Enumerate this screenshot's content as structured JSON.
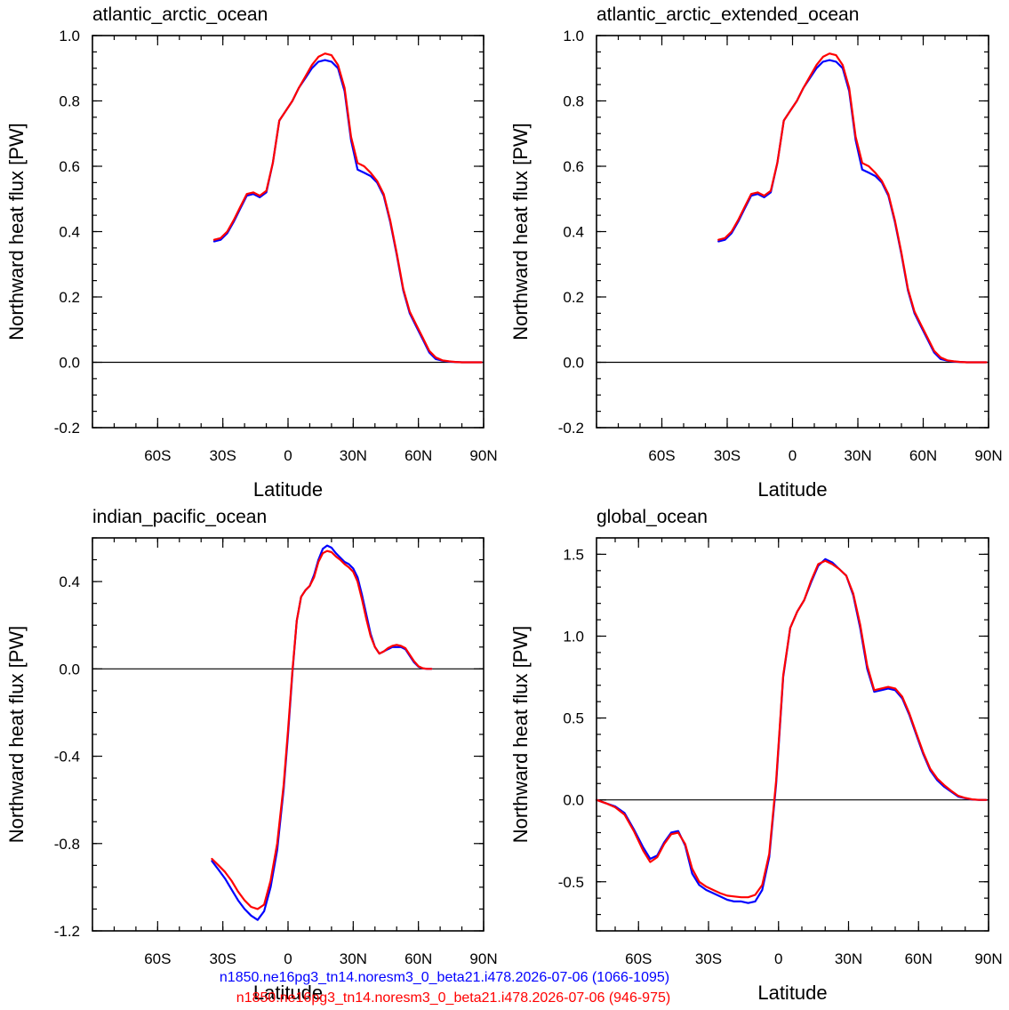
{
  "legend": [
    {
      "name": "n1850.ne16pg3_tn14.noresm3_0_beta21.i478.2026-07-06 (1066-1095)",
      "color": "#0000ff"
    },
    {
      "name": "n1850.ne16pg3_tn14.noresm3_0_beta21.i478.2026-07-06 (946-975)",
      "color": "#ff0000"
    }
  ],
  "chart_data": [
    {
      "type": "line",
      "title": "atlantic_arctic_ocean",
      "xlabel": "Latitude",
      "ylabel": "Northward heat flux [PW]",
      "xlim": [
        -90,
        90
      ],
      "ylim": [
        -0.2,
        1.0
      ],
      "xticks": [
        -60,
        -30,
        0,
        30,
        60,
        90
      ],
      "xticklabels": [
        "60S",
        "30S",
        "0",
        "30N",
        "60N",
        "90N"
      ],
      "yticks": [
        -0.2,
        0.0,
        0.2,
        0.4,
        0.6,
        0.8,
        1.0
      ],
      "yticklabels": [
        "-0.2",
        "0.0",
        "0.2",
        "0.4",
        "0.6",
        "0.8",
        "1.0"
      ],
      "yminor": 0.05,
      "zero_line": true,
      "series": [
        {
          "color": "#0000ff",
          "x": [
            -34,
            -31,
            -28,
            -25,
            -22,
            -19,
            -16,
            -13,
            -10,
            -7,
            -4,
            -1,
            2,
            5,
            8,
            11,
            14,
            17,
            20,
            23,
            26,
            29,
            32,
            35,
            38,
            41,
            44,
            47,
            50,
            53,
            56,
            59,
            62,
            65,
            68,
            71,
            74,
            77,
            80,
            83,
            86,
            89
          ],
          "y": [
            0.37,
            0.375,
            0.395,
            0.43,
            0.47,
            0.51,
            0.515,
            0.505,
            0.52,
            0.61,
            0.74,
            0.77,
            0.8,
            0.84,
            0.87,
            0.9,
            0.92,
            0.925,
            0.92,
            0.9,
            0.83,
            0.68,
            0.59,
            0.58,
            0.57,
            0.55,
            0.51,
            0.43,
            0.33,
            0.22,
            0.15,
            0.11,
            0.07,
            0.03,
            0.01,
            0.005,
            0.002,
            0.001,
            0,
            0,
            0,
            0
          ]
        },
        {
          "color": "#ff0000",
          "x": [
            -34,
            -31,
            -28,
            -25,
            -22,
            -19,
            -16,
            -13,
            -10,
            -7,
            -4,
            -1,
            2,
            5,
            8,
            11,
            14,
            17,
            20,
            23,
            26,
            29,
            32,
            35,
            38,
            41,
            44,
            47,
            50,
            53,
            56,
            59,
            62,
            65,
            68,
            71,
            74,
            77,
            80,
            83,
            86,
            89
          ],
          "y": [
            0.375,
            0.38,
            0.4,
            0.435,
            0.475,
            0.515,
            0.52,
            0.51,
            0.525,
            0.61,
            0.74,
            0.77,
            0.8,
            0.84,
            0.875,
            0.91,
            0.935,
            0.945,
            0.94,
            0.91,
            0.84,
            0.69,
            0.61,
            0.6,
            0.58,
            0.555,
            0.515,
            0.435,
            0.335,
            0.225,
            0.155,
            0.115,
            0.075,
            0.035,
            0.015,
            0.006,
            0.003,
            0.001,
            0,
            0,
            0,
            0
          ]
        }
      ]
    },
    {
      "type": "line",
      "title": "atlantic_arctic_extended_ocean",
      "xlabel": "Latitude",
      "ylabel": "Northward heat flux [PW]",
      "xlim": [
        -90,
        90
      ],
      "ylim": [
        -0.2,
        1.0
      ],
      "xticks": [
        -60,
        -30,
        0,
        30,
        60,
        90
      ],
      "xticklabels": [
        "60S",
        "30S",
        "0",
        "30N",
        "60N",
        "90N"
      ],
      "yticks": [
        -0.2,
        0.0,
        0.2,
        0.4,
        0.6,
        0.8,
        1.0
      ],
      "yticklabels": [
        "-0.2",
        "0.0",
        "0.2",
        "0.4",
        "0.6",
        "0.8",
        "1.0"
      ],
      "yminor": 0.05,
      "zero_line": true,
      "series": [
        {
          "color": "#0000ff",
          "x": [
            -34,
            -31,
            -28,
            -25,
            -22,
            -19,
            -16,
            -13,
            -10,
            -7,
            -4,
            -1,
            2,
            5,
            8,
            11,
            14,
            17,
            20,
            23,
            26,
            29,
            32,
            35,
            38,
            41,
            44,
            47,
            50,
            53,
            56,
            59,
            62,
            65,
            68,
            71,
            74,
            77,
            80,
            83,
            86,
            89
          ],
          "y": [
            0.37,
            0.375,
            0.395,
            0.43,
            0.47,
            0.51,
            0.515,
            0.505,
            0.52,
            0.61,
            0.74,
            0.77,
            0.8,
            0.84,
            0.87,
            0.9,
            0.92,
            0.925,
            0.92,
            0.9,
            0.83,
            0.68,
            0.59,
            0.58,
            0.57,
            0.55,
            0.51,
            0.43,
            0.33,
            0.22,
            0.15,
            0.11,
            0.07,
            0.03,
            0.01,
            0.005,
            0.002,
            0.001,
            0,
            0,
            0,
            0
          ]
        },
        {
          "color": "#ff0000",
          "x": [
            -34,
            -31,
            -28,
            -25,
            -22,
            -19,
            -16,
            -13,
            -10,
            -7,
            -4,
            -1,
            2,
            5,
            8,
            11,
            14,
            17,
            20,
            23,
            26,
            29,
            32,
            35,
            38,
            41,
            44,
            47,
            50,
            53,
            56,
            59,
            62,
            65,
            68,
            71,
            74,
            77,
            80,
            83,
            86,
            89
          ],
          "y": [
            0.375,
            0.38,
            0.4,
            0.435,
            0.475,
            0.515,
            0.52,
            0.51,
            0.525,
            0.61,
            0.74,
            0.77,
            0.8,
            0.84,
            0.875,
            0.91,
            0.935,
            0.945,
            0.94,
            0.91,
            0.84,
            0.69,
            0.61,
            0.6,
            0.58,
            0.555,
            0.515,
            0.435,
            0.335,
            0.225,
            0.155,
            0.115,
            0.075,
            0.035,
            0.015,
            0.006,
            0.003,
            0.001,
            0,
            0,
            0,
            0
          ]
        }
      ]
    },
    {
      "type": "line",
      "title": "indian_pacific_ocean",
      "xlabel": "Latitude",
      "ylabel": "Northward heat flux [PW]",
      "xlim": [
        -90,
        90
      ],
      "ylim": [
        -1.2,
        0.6
      ],
      "xticks": [
        -60,
        -30,
        0,
        30,
        60,
        90
      ],
      "xticklabels": [
        "60S",
        "30S",
        "0",
        "30N",
        "60N",
        "90N"
      ],
      "yticks": [
        -1.2,
        -0.8,
        -0.4,
        0.0,
        0.4
      ],
      "yticklabels": [
        "-1.2",
        "-0.8",
        "-0.4",
        "0.0",
        "0.4"
      ],
      "yminor": 0.1,
      "zero_line": true,
      "series": [
        {
          "color": "#0000ff",
          "x": [
            -35,
            -32,
            -29,
            -26,
            -23,
            -20,
            -17,
            -14,
            -11,
            -8,
            -5,
            -2,
            0,
            2,
            4,
            6,
            8,
            10,
            12,
            14,
            16,
            18,
            20,
            22,
            24,
            26,
            28,
            30,
            32,
            34,
            36,
            38,
            40,
            42,
            44,
            46,
            48,
            50,
            52,
            54,
            56,
            58,
            60,
            62,
            64,
            66
          ],
          "y": [
            -0.88,
            -0.92,
            -0.96,
            -1.01,
            -1.06,
            -1.1,
            -1.13,
            -1.15,
            -1.11,
            -1.0,
            -0.83,
            -0.55,
            -0.3,
            -0.02,
            0.22,
            0.33,
            0.36,
            0.38,
            0.43,
            0.5,
            0.55,
            0.565,
            0.555,
            0.53,
            0.51,
            0.49,
            0.48,
            0.46,
            0.42,
            0.34,
            0.25,
            0.16,
            0.1,
            0.07,
            0.08,
            0.09,
            0.1,
            0.1,
            0.1,
            0.09,
            0.06,
            0.03,
            0.01,
            0.002,
            0,
            0
          ]
        },
        {
          "color": "#ff0000",
          "x": [
            -35,
            -32,
            -29,
            -26,
            -23,
            -20,
            -17,
            -14,
            -11,
            -8,
            -5,
            -2,
            0,
            2,
            4,
            6,
            8,
            10,
            12,
            14,
            16,
            18,
            20,
            22,
            24,
            26,
            28,
            30,
            32,
            34,
            36,
            38,
            40,
            42,
            44,
            46,
            48,
            50,
            52,
            54,
            56,
            58,
            60,
            62,
            64,
            66
          ],
          "y": [
            -0.87,
            -0.9,
            -0.93,
            -0.97,
            -1.02,
            -1.06,
            -1.09,
            -1.1,
            -1.08,
            -0.97,
            -0.8,
            -0.53,
            -0.28,
            -0.01,
            0.22,
            0.33,
            0.36,
            0.38,
            0.42,
            0.49,
            0.53,
            0.54,
            0.535,
            0.515,
            0.5,
            0.48,
            0.465,
            0.445,
            0.4,
            0.32,
            0.23,
            0.15,
            0.1,
            0.07,
            0.08,
            0.095,
            0.105,
            0.11,
            0.105,
            0.095,
            0.065,
            0.035,
            0.012,
            0.003,
            0,
            0
          ]
        }
      ]
    },
    {
      "type": "line",
      "title": "global_ocean",
      "xlabel": "Latitude",
      "ylabel": "Northward heat flux [PW]",
      "xlim": [
        -78,
        90
      ],
      "ylim": [
        -0.8,
        1.6
      ],
      "xticks": [
        -60,
        -30,
        0,
        30,
        60,
        90
      ],
      "xticklabels": [
        "60S",
        "30S",
        "0",
        "30N",
        "60N",
        "90N"
      ],
      "yticks": [
        -0.5,
        0.0,
        0.5,
        1.0,
        1.5
      ],
      "yticklabels": [
        "-0.5",
        "0.0",
        "0.5",
        "1.0",
        "1.5"
      ],
      "yminor": 0.1,
      "zero_line": true,
      "series": [
        {
          "color": "#0000ff",
          "x": [
            -78,
            -74,
            -70,
            -66,
            -62,
            -58,
            -55,
            -52,
            -49,
            -46,
            -43,
            -40,
            -37,
            -34,
            -31,
            -28,
            -25,
            -22,
            -19,
            -16,
            -13,
            -10,
            -7,
            -4,
            -1,
            2,
            5,
            8,
            11,
            14,
            17,
            20,
            23,
            26,
            29,
            32,
            35,
            38,
            41,
            44,
            47,
            50,
            53,
            56,
            59,
            62,
            65,
            68,
            71,
            74,
            77,
            80,
            83,
            86,
            89
          ],
          "y": [
            0,
            -0.02,
            -0.04,
            -0.08,
            -0.18,
            -0.29,
            -0.36,
            -0.34,
            -0.26,
            -0.2,
            -0.19,
            -0.28,
            -0.45,
            -0.52,
            -0.55,
            -0.57,
            -0.59,
            -0.61,
            -0.62,
            -0.62,
            -0.63,
            -0.62,
            -0.55,
            -0.35,
            0.1,
            0.75,
            1.05,
            1.15,
            1.22,
            1.33,
            1.43,
            1.47,
            1.45,
            1.41,
            1.37,
            1.25,
            1.05,
            0.8,
            0.66,
            0.67,
            0.68,
            0.67,
            0.62,
            0.52,
            0.4,
            0.28,
            0.18,
            0.12,
            0.08,
            0.05,
            0.02,
            0.01,
            0.002,
            0,
            0
          ]
        },
        {
          "color": "#ff0000",
          "x": [
            -78,
            -74,
            -70,
            -66,
            -62,
            -58,
            -55,
            -52,
            -49,
            -46,
            -43,
            -40,
            -37,
            -34,
            -31,
            -28,
            -25,
            -22,
            -19,
            -16,
            -13,
            -10,
            -7,
            -4,
            -1,
            2,
            5,
            8,
            11,
            14,
            17,
            20,
            23,
            26,
            29,
            32,
            35,
            38,
            41,
            44,
            47,
            50,
            53,
            56,
            59,
            62,
            65,
            68,
            71,
            74,
            77,
            80,
            83,
            86,
            89
          ],
          "y": [
            0,
            -0.02,
            -0.045,
            -0.09,
            -0.19,
            -0.31,
            -0.38,
            -0.35,
            -0.27,
            -0.21,
            -0.2,
            -0.27,
            -0.42,
            -0.5,
            -0.53,
            -0.55,
            -0.57,
            -0.585,
            -0.59,
            -0.595,
            -0.595,
            -0.58,
            -0.52,
            -0.33,
            0.12,
            0.76,
            1.05,
            1.15,
            1.22,
            1.34,
            1.44,
            1.46,
            1.44,
            1.41,
            1.37,
            1.26,
            1.07,
            0.82,
            0.67,
            0.68,
            0.69,
            0.68,
            0.63,
            0.53,
            0.41,
            0.29,
            0.19,
            0.13,
            0.09,
            0.055,
            0.025,
            0.012,
            0.003,
            0,
            0
          ]
        }
      ]
    }
  ]
}
